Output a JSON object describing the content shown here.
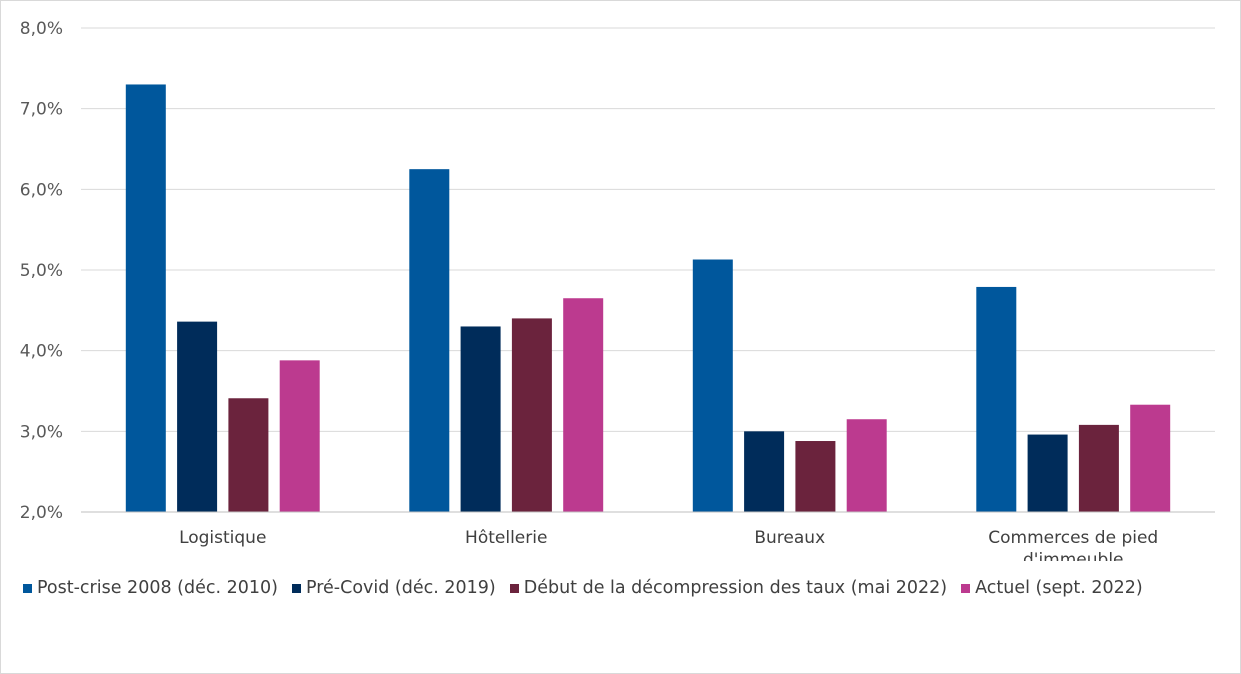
{
  "chart_data": {
    "type": "bar",
    "title": "",
    "xlabel": "",
    "ylabel": "",
    "ylim": [
      2.0,
      8.0
    ],
    "yticks": [
      2.0,
      3.0,
      4.0,
      5.0,
      6.0,
      7.0,
      8.0
    ],
    "ytick_labels": [
      "2,0%",
      "3,0%",
      "4,0%",
      "5,0%",
      "6,0%",
      "7,0%",
      "8,0%"
    ],
    "grid": true,
    "legend_position": "bottom",
    "categories": [
      [
        "Logistique"
      ],
      [
        "Hôtellerie"
      ],
      [
        "Bureaux"
      ],
      [
        "Commerces de pied",
        "d'immeuble"
      ]
    ],
    "series": [
      {
        "name": "Post-crise 2008 (déc. 2010)",
        "color": "#00579c",
        "values": [
          7.3,
          6.25,
          5.13,
          4.79
        ]
      },
      {
        "name": "Pré-Covid (déc. 2019)",
        "color": "#002c5a",
        "values": [
          4.36,
          4.3,
          3.0,
          2.96
        ]
      },
      {
        "name": "Début de la décompression des taux (mai 2022)",
        "color": "#6b233d",
        "values": [
          3.41,
          4.4,
          2.88,
          3.08
        ]
      },
      {
        "name": "Actuel (sept. 2022)",
        "color": "#bc3a8f",
        "values": [
          3.88,
          4.65,
          3.15,
          3.33
        ]
      }
    ]
  }
}
